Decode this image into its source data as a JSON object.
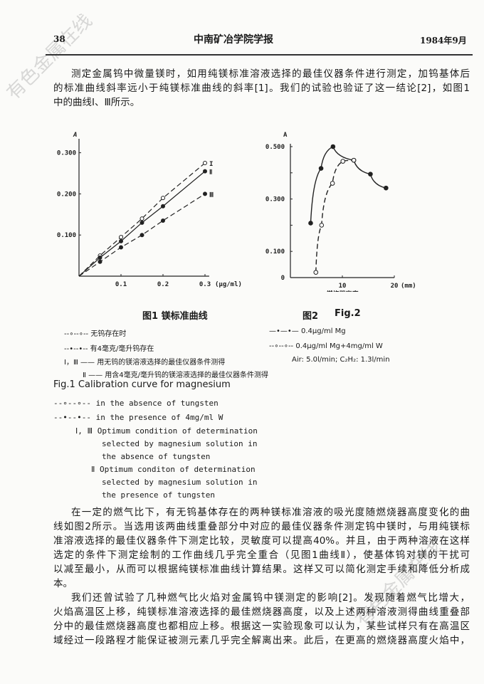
{
  "header": {
    "page_number": "38",
    "journal": "中南矿冶学院学报",
    "date": "1984年9月"
  },
  "watermark": "有色金属在线",
  "paragraph1": [
    "测定金属钨中微量镁时，如用纯镁标准溶液选择的最佳仪器条件进行测定，加钨基体后",
    "的标准曲线斜率远小于纯镁标准曲线的斜率[1]。我们的试验也验证了这一结论[2]，如图1",
    "中的曲线Ⅰ、Ⅲ所示。"
  ],
  "figure1": {
    "caption": "图1  镁标准曲线",
    "legend": [
      "--∘--∘-- 无钨存在时",
      "--•--•-- 有4毫克/毫升钨存在",
      "Ⅰ，Ⅲ —— 用无钨的镁溶液选择的最佳仪器条件测得",
      "Ⅱ —— 用含4毫克/毫升钨的镁溶液选择的最佳仪器条件测得"
    ],
    "english_caption": "Fig.1  Calibration curve for magnesium",
    "english_legend": [
      "--∘--∘-- in the absence of tungsten",
      "--•--•-- in the presence of 4mg/ml W",
      "Ⅰ, Ⅲ Optimum condition of determination",
      "selected by magnesium solution in",
      "the absence of tungsten",
      "Ⅱ Optimum conditon of determination",
      "selected by magnesium solution in",
      "the presence of tungsten"
    ]
  },
  "figure2": {
    "caption": "图2",
    "caption_en": "Fig.2",
    "legend": [
      "—•—•— 0.4μg/ml Mg",
      "--∘--∘-- 0.4μg/ml Mg+4mg/ml W",
      "Air: 5.0l/min; C₂H₂: 1.3l/min"
    ]
  },
  "chart_data": [
    {
      "type": "line",
      "ylabel": "A",
      "xlabel": "",
      "x_unit": "(μg/ml)",
      "xlim": [
        0,
        0.33
      ],
      "ylim": [
        0,
        0.33
      ],
      "x_ticks": [
        "0.1",
        "0.2",
        "0.3"
      ],
      "y_ticks": [
        "0.100",
        "0.200",
        "0.300"
      ],
      "grid": false,
      "x": [
        0,
        0.05,
        0.1,
        0.15,
        0.2,
        0.3
      ],
      "series": [
        {
          "name": "I",
          "style": "dashed",
          "marker": "open",
          "values": [
            0,
            0.05,
            0.095,
            0.14,
            0.19,
            0.275
          ]
        },
        {
          "name": "Ⅱ",
          "style": "solid",
          "marker": "filled",
          "values": [
            0,
            0.045,
            0.085,
            0.13,
            0.17,
            0.255
          ]
        },
        {
          "name": "Ⅲ",
          "style": "dashed",
          "marker": "filled",
          "values": [
            0,
            0.035,
            0.07,
            0.1,
            0.135,
            0.2
          ]
        }
      ]
    },
    {
      "type": "line",
      "ylabel": "A",
      "xlabel": "燃烧器高度",
      "x_unit": "(mm)",
      "xlim": [
        0,
        22
      ],
      "ylim": [
        0,
        0.53
      ],
      "x_ticks": [
        "10",
        "20"
      ],
      "y_ticks": [
        "0",
        "0.100",
        "0.300",
        "0.500"
      ],
      "grid": false,
      "series": [
        {
          "name": "0.4μg/ml Mg",
          "style": "solid",
          "marker": "filled",
          "x": [
            3.9,
            5.9,
            8.2,
            12.2,
            15.4,
            18.4
          ],
          "values": [
            0.208,
            0.417,
            0.5,
            0.448,
            0.395,
            0.342
          ]
        },
        {
          "name": "0.4μg/ml Mg+4mg/ml W",
          "style": "dashed",
          "marker": "open",
          "x": [
            4.9,
            6.0,
            8.1,
            10.1,
            12.2
          ],
          "values": [
            0.02,
            0.2,
            0.36,
            0.444,
            0.448
          ]
        }
      ]
    }
  ],
  "paragraph2": [
    "在一定的燃气比下，有无钨基体存在的两种镁标准溶液的吸光度随燃烧器高度变化的曲",
    "线如图2所示。当选用该两曲线重叠部分中对应的最佳仪器条件测定钨中镁时，与用纯镁标",
    "准溶液选择的最佳仪器条件下测定比较，灵敏度可以提高40%。并且，由于两种溶液在这样",
    "选定的条件下测定绘制的工作曲线几乎完全重合（见图1曲线Ⅱ），使基体钨对镁的干扰可",
    "以减至最小，从而可以根据纯镁标准曲线计算结果。这样又可以简化测定手续和降低分析成",
    "本。"
  ],
  "paragraph3": [
    "我们还曾试验了几种燃气比火焰对金属钨中镁测定的影响[2]。发现随着燃气比增大，",
    "火焰高温区上移，纯镁标准溶液选择的最佳燃烧器高度，以及上述两种溶液测得曲线重叠部",
    "分中的最佳燃烧器高度也都相应上移。根据这一实验现象可以认为，某些试样只有在高温区",
    "域经过一段路程才能保证被测元素几乎完全解离出来。此后，在更高的燃烧器高度火焰中，"
  ]
}
